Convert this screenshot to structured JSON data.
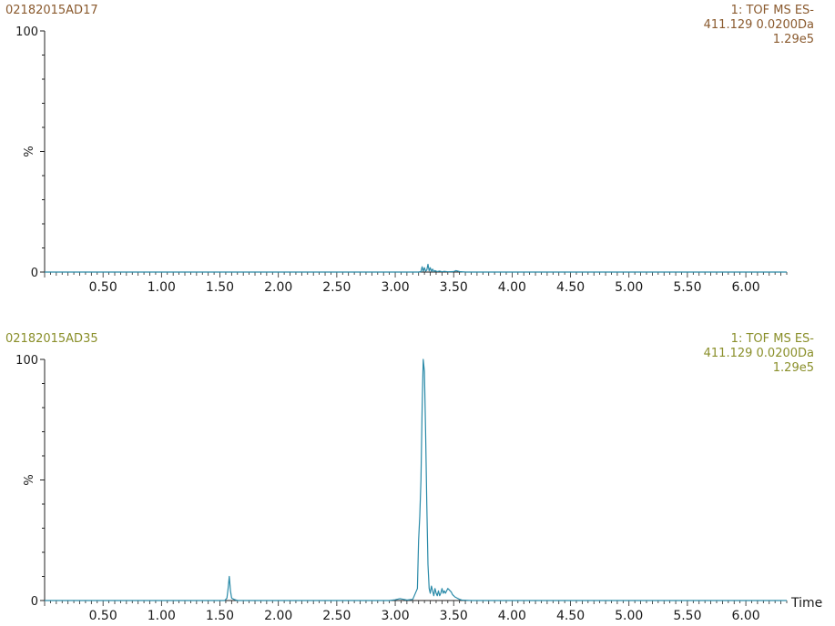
{
  "chart_data": [
    {
      "type": "line",
      "sample_id": "02182015AD17",
      "header": [
        "1: TOF MS ES-",
        "411.129 0.0200Da",
        "1.29e5"
      ],
      "header_color": "#8a5a2e",
      "ylabel": "%",
      "xlabel": "",
      "xlim": [
        0,
        6.35
      ],
      "ylim": [
        0,
        100
      ],
      "y_ticks": [
        "0",
        "100"
      ],
      "x_ticks": [
        "0.50",
        "1.00",
        "1.50",
        "2.00",
        "2.50",
        "3.00",
        "3.50",
        "4.00",
        "4.50",
        "5.00",
        "5.50",
        "6.00"
      ],
      "line_color": "#2a8aa8",
      "series": [
        {
          "x": [
            0.0,
            3.2,
            3.22,
            3.23,
            3.24,
            3.25,
            3.26,
            3.27,
            3.28,
            3.29,
            3.3,
            3.31,
            3.32,
            3.33,
            3.34,
            3.36,
            3.38,
            3.4,
            3.42,
            3.45,
            3.5,
            3.52,
            3.55,
            3.6,
            6.35
          ],
          "y": [
            0,
            0,
            0.2,
            2.2,
            0.3,
            1.8,
            0.4,
            0.8,
            3.2,
            0.5,
            1.8,
            0.3,
            1.2,
            0.2,
            0.6,
            0.2,
            0.4,
            0.1,
            0.3,
            0.1,
            0.2,
            0.6,
            0.2,
            0,
            0
          ]
        }
      ]
    },
    {
      "type": "line",
      "sample_id": "02182015AD35",
      "header": [
        "1: TOF MS ES-",
        "411.129 0.0200Da",
        "1.29e5"
      ],
      "header_color": "#8a8f2a",
      "ylabel": "%",
      "xlabel": "Time",
      "xlim": [
        0,
        6.35
      ],
      "ylim": [
        0,
        100
      ],
      "y_ticks": [
        "0",
        "100"
      ],
      "x_ticks": [
        "0.50",
        "1.00",
        "1.50",
        "2.00",
        "2.50",
        "3.00",
        "3.50",
        "4.00",
        "4.50",
        "5.00",
        "5.50",
        "6.00"
      ],
      "line_color": "#2a8aa8",
      "series": [
        {
          "x": [
            0.0,
            1.54,
            1.56,
            1.57,
            1.58,
            1.59,
            1.6,
            1.62,
            1.65,
            2.95,
            3.0,
            3.04,
            3.07,
            3.1,
            3.15,
            3.19,
            3.2,
            3.21,
            3.22,
            3.23,
            3.24,
            3.25,
            3.26,
            3.27,
            3.28,
            3.29,
            3.3,
            3.31,
            3.32,
            3.33,
            3.34,
            3.35,
            3.36,
            3.37,
            3.38,
            3.39,
            3.4,
            3.41,
            3.42,
            3.43,
            3.44,
            3.45,
            3.46,
            3.47,
            3.48,
            3.49,
            3.5,
            3.51,
            3.53,
            3.55,
            3.57,
            3.6,
            3.65,
            6.35
          ],
          "y": [
            0,
            0,
            1,
            5,
            10,
            4,
            1,
            0.5,
            0,
            0,
            0.3,
            0.8,
            0.5,
            0.2,
            0.5,
            5,
            25,
            35,
            50,
            80,
            100,
            95,
            70,
            40,
            15,
            5,
            3,
            6,
            4,
            2,
            5,
            3,
            2,
            4,
            2,
            3,
            5,
            3,
            4,
            3,
            4,
            5,
            4.5,
            4,
            3.5,
            2.5,
            2,
            1.5,
            1,
            0.5,
            0.2,
            0.1,
            0,
            0
          ]
        }
      ]
    }
  ]
}
